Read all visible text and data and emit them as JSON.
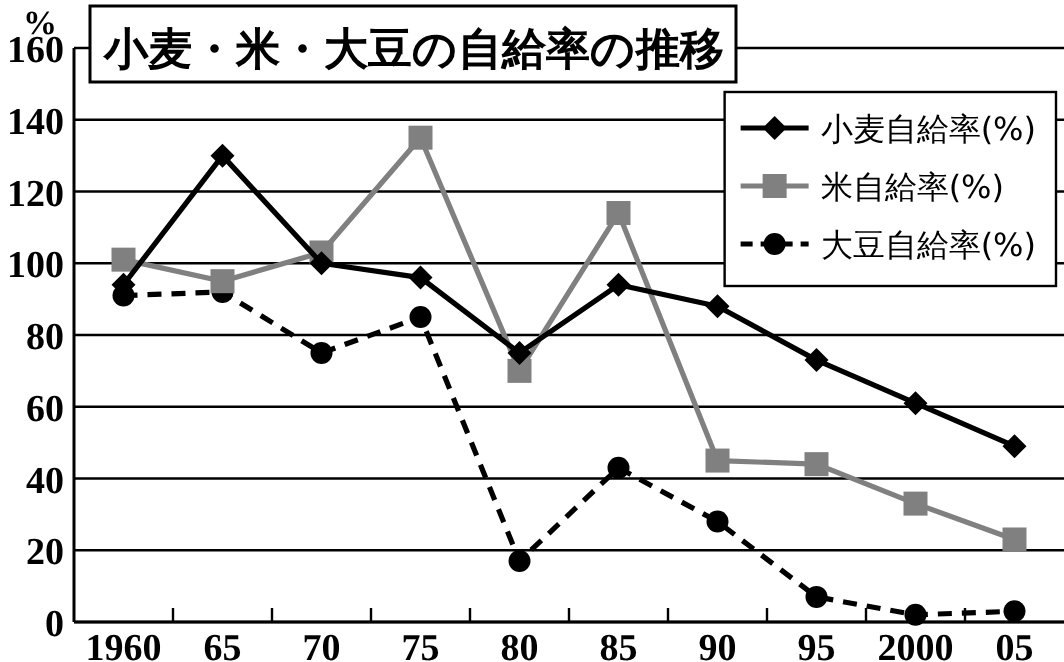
{
  "chart_data": {
    "type": "line",
    "title": "小麦・米・大豆の自給率の推移",
    "ylabel": "%",
    "categories": [
      "1960",
      "65",
      "70",
      "75",
      "80",
      "85",
      "90",
      "95",
      "2000",
      "05"
    ],
    "ylim": [
      0,
      160
    ],
    "yticks": [
      0,
      20,
      40,
      60,
      80,
      100,
      120,
      140,
      160
    ],
    "grid": "y",
    "legend": "top right",
    "series": [
      {
        "name": "小麦自給率(%)",
        "color": "#000000",
        "marker": "diamond",
        "line_style": "solid",
        "values": [
          94,
          130,
          100,
          96,
          75,
          94,
          88,
          73,
          61,
          49
        ]
      },
      {
        "name": "米自給率(%)",
        "color": "#808080",
        "marker": "square",
        "line_style": "solid",
        "values": [
          101,
          95,
          103,
          135,
          70,
          114,
          45,
          44,
          33,
          23
        ]
      },
      {
        "name": "大豆自給率(%)",
        "color": "#000000",
        "marker": "circle",
        "line_style": "dashed",
        "values": [
          91,
          92,
          75,
          85,
          17,
          43,
          28,
          7,
          2,
          3
        ]
      }
    ]
  }
}
